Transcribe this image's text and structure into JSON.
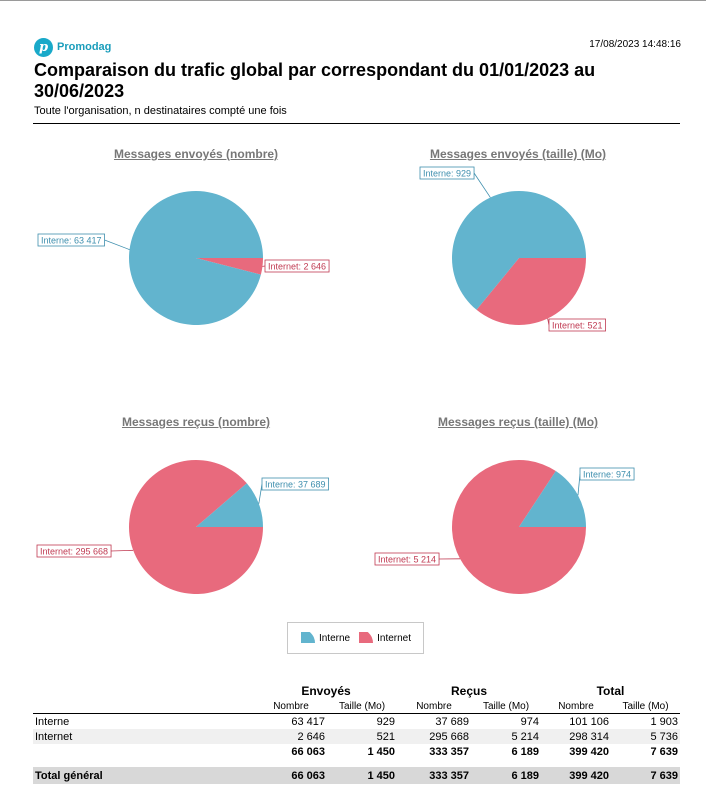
{
  "header": {
    "logo_text": "Promodag",
    "logo_glyph": "p",
    "timestamp": "17/08/2023 14:48:16",
    "title_line1": "Comparaison du trafic global par correspondant du 01/01/2023 au",
    "title_line2": "30/06/2023",
    "subtitle": "Toute l'organisation, n destinataires compté une fois"
  },
  "colors": {
    "interne": "#62b4ce",
    "internet": "#e86a7d",
    "interne_label": "#3f8fae",
    "internet_label": "#c03a52"
  },
  "chart_data": [
    {
      "type": "pie",
      "title": "Messages envoyés (nombre)",
      "categories": [
        "Interne",
        "Internet"
      ],
      "values": [
        63417,
        2646
      ],
      "labels": [
        "Interne: 63 417",
        "Internet: 2 646"
      ]
    },
    {
      "type": "pie",
      "title": "Messages envoyés (taille) (Mo)",
      "categories": [
        "Interne",
        "Internet"
      ],
      "values": [
        929,
        521
      ],
      "labels": [
        "Interne: 929",
        "Internet: 521"
      ]
    },
    {
      "type": "pie",
      "title": "Messages reçus (nombre)",
      "categories": [
        "Interne",
        "Internet"
      ],
      "values": [
        37689,
        295668
      ],
      "labels": [
        "Interne: 37 689",
        "Internet: 295 668"
      ]
    },
    {
      "type": "pie",
      "title": "Messages reçus (taille) (Mo)",
      "categories": [
        "Interne",
        "Internet"
      ],
      "values": [
        974,
        5214
      ],
      "labels": [
        "Interne: 974",
        "Internet: 5 214"
      ]
    }
  ],
  "legend": {
    "interne": "Interne",
    "internet": "Internet"
  },
  "table": {
    "groups": [
      "Envoyés",
      "Reçus",
      "Total"
    ],
    "subheaders": [
      "Nombre",
      "Taille (Mo)",
      "Nombre",
      "Taille (Mo)",
      "Nombre",
      "Taille (Mo)"
    ],
    "rows": [
      {
        "label": "Interne",
        "values": [
          "63 417",
          "929",
          "37 689",
          "974",
          "101 106",
          "1 903"
        ]
      },
      {
        "label": "Internet",
        "values": [
          "2 646",
          "521",
          "295 668",
          "5 214",
          "298 314",
          "5 736"
        ]
      }
    ],
    "subtotal": {
      "label": "",
      "values": [
        "66 063",
        "1 450",
        "333 357",
        "6 189",
        "399 420",
        "7 639"
      ]
    },
    "grand_total": {
      "label": "Total général",
      "values": [
        "66 063",
        "1 450",
        "333 357",
        "6 189",
        "399 420",
        "7 639"
      ]
    }
  }
}
